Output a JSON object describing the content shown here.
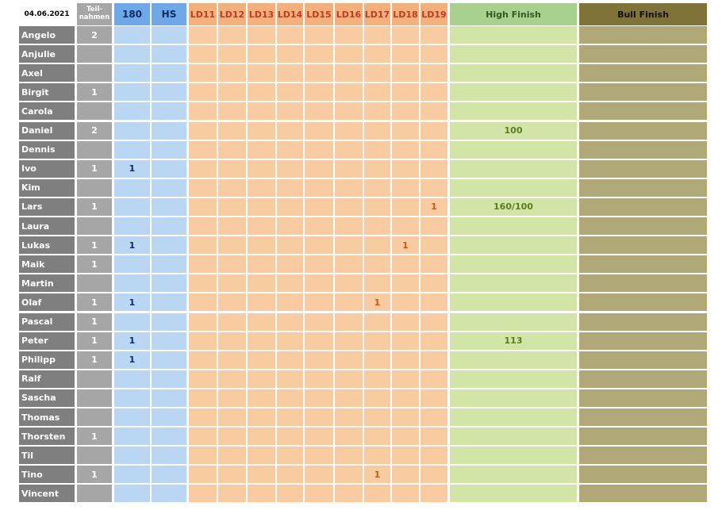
{
  "date": "04.06.2021",
  "headers": {
    "teilnahmen": [
      "Teil-",
      "nahmen"
    ],
    "c180": "180",
    "hs": "HS",
    "ld": [
      "LD11",
      "LD12",
      "LD13",
      "LD14",
      "LD15",
      "LD16",
      "LD17",
      "LD18",
      "LD19"
    ],
    "high_finish": "High Finish",
    "bull_finish": "Bull Finish"
  },
  "players": [
    {
      "name": "Angelo",
      "teilnahmen": "2",
      "c180": "",
      "hs": "",
      "ld": [
        "",
        "",
        "",
        "",
        "",
        "",
        "",
        "",
        ""
      ],
      "high_finish": "",
      "bull_finish": ""
    },
    {
      "name": "Anjulie",
      "teilnahmen": "",
      "c180": "",
      "hs": "",
      "ld": [
        "",
        "",
        "",
        "",
        "",
        "",
        "",
        "",
        ""
      ],
      "high_finish": "",
      "bull_finish": ""
    },
    {
      "name": "Axel",
      "teilnahmen": "",
      "c180": "",
      "hs": "",
      "ld": [
        "",
        "",
        "",
        "",
        "",
        "",
        "",
        "",
        ""
      ],
      "high_finish": "",
      "bull_finish": ""
    },
    {
      "name": "Birgit",
      "teilnahmen": "1",
      "c180": "",
      "hs": "",
      "ld": [
        "",
        "",
        "",
        "",
        "",
        "",
        "",
        "",
        ""
      ],
      "high_finish": "",
      "bull_finish": ""
    },
    {
      "name": "Carola",
      "teilnahmen": "",
      "c180": "",
      "hs": "",
      "ld": [
        "",
        "",
        "",
        "",
        "",
        "",
        "",
        "",
        ""
      ],
      "high_finish": "",
      "bull_finish": ""
    },
    {
      "name": "Daniel",
      "teilnahmen": "2",
      "c180": "",
      "hs": "",
      "ld": [
        "",
        "",
        "",
        "",
        "",
        "",
        "",
        "",
        ""
      ],
      "high_finish": "100",
      "bull_finish": ""
    },
    {
      "name": "Dennis",
      "teilnahmen": "",
      "c180": "",
      "hs": "",
      "ld": [
        "",
        "",
        "",
        "",
        "",
        "",
        "",
        "",
        ""
      ],
      "high_finish": "",
      "bull_finish": ""
    },
    {
      "name": "Ivo",
      "teilnahmen": "1",
      "c180": "1",
      "hs": "",
      "ld": [
        "",
        "",
        "",
        "",
        "",
        "",
        "",
        "",
        ""
      ],
      "high_finish": "",
      "bull_finish": ""
    },
    {
      "name": "Kim",
      "teilnahmen": "",
      "c180": "",
      "hs": "",
      "ld": [
        "",
        "",
        "",
        "",
        "",
        "",
        "",
        "",
        ""
      ],
      "high_finish": "",
      "bull_finish": ""
    },
    {
      "name": "Lars",
      "teilnahmen": "1",
      "c180": "",
      "hs": "",
      "ld": [
        "",
        "",
        "",
        "",
        "",
        "",
        "",
        "",
        "1"
      ],
      "high_finish": "160/100",
      "bull_finish": ""
    },
    {
      "name": "Laura",
      "teilnahmen": "",
      "c180": "",
      "hs": "",
      "ld": [
        "",
        "",
        "",
        "",
        "",
        "",
        "",
        "",
        ""
      ],
      "high_finish": "",
      "bull_finish": ""
    },
    {
      "name": "Lukas",
      "teilnahmen": "1",
      "c180": "1",
      "hs": "",
      "ld": [
        "",
        "",
        "",
        "",
        "",
        "",
        "",
        "1",
        ""
      ],
      "high_finish": "",
      "bull_finish": ""
    },
    {
      "name": "Maik",
      "teilnahmen": "1",
      "c180": "",
      "hs": "",
      "ld": [
        "",
        "",
        "",
        "",
        "",
        "",
        "",
        "",
        ""
      ],
      "high_finish": "",
      "bull_finish": ""
    },
    {
      "name": "Martin",
      "teilnahmen": "",
      "c180": "",
      "hs": "",
      "ld": [
        "",
        "",
        "",
        "",
        "",
        "",
        "",
        "",
        ""
      ],
      "high_finish": "",
      "bull_finish": ""
    },
    {
      "name": "Olaf",
      "teilnahmen": "1",
      "c180": "1",
      "hs": "",
      "ld": [
        "",
        "",
        "",
        "",
        "",
        "",
        "1",
        "",
        ""
      ],
      "high_finish": "",
      "bull_finish": ""
    },
    {
      "name": "Pascal",
      "teilnahmen": "1",
      "c180": "",
      "hs": "",
      "ld": [
        "",
        "",
        "",
        "",
        "",
        "",
        "",
        "",
        ""
      ],
      "high_finish": "",
      "bull_finish": ""
    },
    {
      "name": "Peter",
      "teilnahmen": "1",
      "c180": "1",
      "hs": "",
      "ld": [
        "",
        "",
        "",
        "",
        "",
        "",
        "",
        "",
        ""
      ],
      "high_finish": "113",
      "bull_finish": ""
    },
    {
      "name": "Philipp",
      "teilnahmen": "1",
      "c180": "1",
      "hs": "",
      "ld": [
        "",
        "",
        "",
        "",
        "",
        "",
        "",
        "",
        ""
      ],
      "high_finish": "",
      "bull_finish": ""
    },
    {
      "name": "Ralf",
      "teilnahmen": "",
      "c180": "",
      "hs": "",
      "ld": [
        "",
        "",
        "",
        "",
        "",
        "",
        "",
        "",
        ""
      ],
      "high_finish": "",
      "bull_finish": ""
    },
    {
      "name": "Sascha",
      "teilnahmen": "",
      "c180": "",
      "hs": "",
      "ld": [
        "",
        "",
        "",
        "",
        "",
        "",
        "",
        "",
        ""
      ],
      "high_finish": "",
      "bull_finish": ""
    },
    {
      "name": "Thomas",
      "teilnahmen": "",
      "c180": "",
      "hs": "",
      "ld": [
        "",
        "",
        "",
        "",
        "",
        "",
        "",
        "",
        ""
      ],
      "high_finish": "",
      "bull_finish": ""
    },
    {
      "name": "Thorsten",
      "teilnahmen": "1",
      "c180": "",
      "hs": "",
      "ld": [
        "",
        "",
        "",
        "",
        "",
        "",
        "",
        "",
        ""
      ],
      "high_finish": "",
      "bull_finish": ""
    },
    {
      "name": "Til",
      "teilnahmen": "",
      "c180": "",
      "hs": "",
      "ld": [
        "",
        "",
        "",
        "",
        "",
        "",
        "",
        "",
        ""
      ],
      "high_finish": "",
      "bull_finish": ""
    },
    {
      "name": "Tino",
      "teilnahmen": "1",
      "c180": "",
      "hs": "",
      "ld": [
        "",
        "",
        "",
        "",
        "",
        "",
        "1",
        "",
        ""
      ],
      "high_finish": "",
      "bull_finish": ""
    },
    {
      "name": "Vincent",
      "teilnahmen": "",
      "c180": "",
      "hs": "",
      "ld": [
        "",
        "",
        "",
        "",
        "",
        "",
        "",
        "",
        ""
      ],
      "high_finish": "",
      "bull_finish": ""
    }
  ],
  "colors": {
    "name_bg": "#7f7f7f",
    "teilnahmen_bg": "#a6a6a6",
    "c180_header": "#6fa8e8",
    "c180_cell": "#b9d6f3",
    "ld_header": "#f4b07a",
    "ld_cell": "#f8cba1",
    "high_finish_header": "#a9d18e",
    "high_finish_cell": "#d2e5a7",
    "bull_finish_header": "#7f7338",
    "bull_finish_cell": "#b1a878"
  }
}
